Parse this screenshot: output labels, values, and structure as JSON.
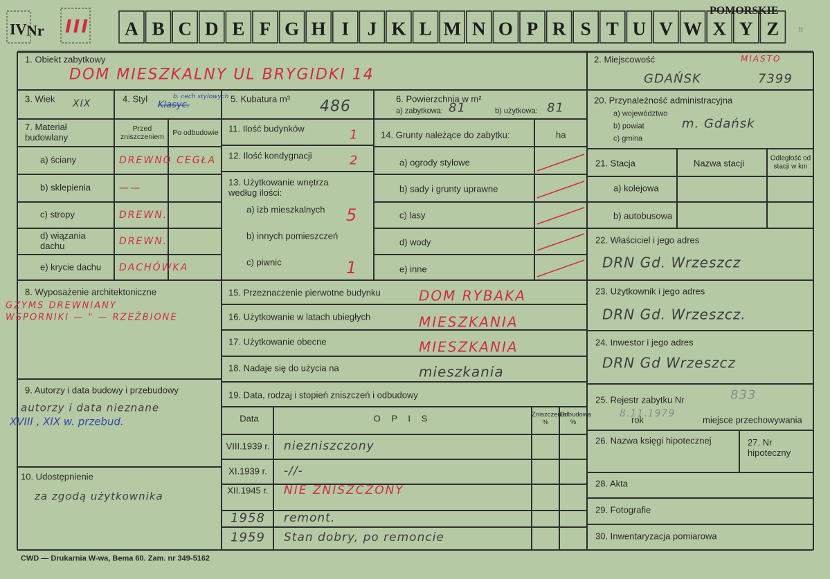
{
  "header": {
    "prefix": "IV",
    "number_label": "Nr",
    "number": "III",
    "region": "POMORSKIE",
    "suffix": "II",
    "letters": [
      "A",
      "B",
      "C",
      "D",
      "E",
      "F",
      "G",
      "H",
      "I",
      "J",
      "K",
      "L",
      "M",
      "N",
      "O",
      "P",
      "R",
      "S",
      "T",
      "U",
      "V",
      "W",
      "X",
      "Y",
      "Z"
    ]
  },
  "object": {
    "label": "1. Obiekt zabytkowy",
    "value": "DOM MIESZKALNY   UL BRYGIDKI 14"
  },
  "locality": {
    "label": "2. Miejscowość",
    "note": "MIASTO",
    "value": "GDAŃSK",
    "code": "7399"
  },
  "age": {
    "label": "3. Wiek",
    "value": "XIX"
  },
  "style": {
    "label": "4. Styl",
    "note": "b. cech stylowych",
    "value": "Klasyc."
  },
  "volume": {
    "label": "5. Kubatura m³",
    "value": "486"
  },
  "area": {
    "label": "6. Powierzchnia w m²",
    "historic_label": "a) zabytkowa:",
    "historic": "81",
    "usable_label": "b) użytkowa:",
    "usable": "81"
  },
  "administration": {
    "label": "20. Przynależność administracyjna",
    "voivodeship": "a) województwo",
    "district": "b) powiat",
    "district_value": "m. Gdańsk",
    "commune": "c) gmina"
  },
  "materials": {
    "label": "7. Materiał budowlany",
    "before": "Przed zniszczeniem",
    "after": "Po odbudowie",
    "rows": [
      [
        "a) ściany",
        "DREWNO CEGŁA"
      ],
      [
        "b) sklepienia",
        "——"
      ],
      [
        "c) stropy",
        "DREWN."
      ],
      [
        "d) wiązania dachu",
        "DREWN."
      ],
      [
        "e) krycie dachu",
        "DACHÓWKA"
      ]
    ]
  },
  "buildings": {
    "label": "11. Ilość budynków",
    "value": "1"
  },
  "floors": {
    "label": "12. Ilość kondygnacji",
    "value": "2"
  },
  "interior": {
    "label": "13. Użytkowanie wnętrza według ilości:",
    "rows": [
      [
        "a) izb mieszkalnych",
        "5"
      ],
      [
        "b) innych pomieszczeń",
        ""
      ],
      [
        "c) piwnic",
        "1"
      ]
    ]
  },
  "land": {
    "label": "14. Grunty należące do zabytku:",
    "unit": "ha",
    "rows": [
      "a) ogrody stylowe",
      "b) sady i grunty uprawne",
      "c) lasy",
      "d) wody",
      "e) inne"
    ]
  },
  "station": {
    "label": "21. Stacja",
    "name": "Nazwa stacji",
    "distance": "Odległość od stacji w km",
    "rows": [
      "a) kolejowa",
      "b) autobusowa"
    ]
  },
  "owner": {
    "label": "22. Właściciel i jego adres",
    "value": "DRN Gd. Wrzeszcz"
  },
  "user": {
    "label": "23. Użytkownik i jego adres",
    "value": "DRN Gd. Wrzeszcz."
  },
  "investor": {
    "label": "24. Inwestor i jego adres",
    "value": "DRN Gd Wrzeszcz"
  },
  "register": {
    "label": "25. Rejestr zabytku Nr",
    "number": "833",
    "year_label": "rok",
    "year": "8.11.1979",
    "place_label": "miejsce przechowywania"
  },
  "mortgage_book": {
    "label": "26. Nazwa księgi hipotecznej"
  },
  "mortgage_no": {
    "label": "27. Nr hipoteczny"
  },
  "files": {
    "label": "28. Akta"
  },
  "photos": {
    "label": "29. Fotografie"
  },
  "survey": {
    "label": "30. Inwentaryzacja pomiarowa"
  },
  "equipment": {
    "label": "8. Wyposażenie architektoniczne",
    "lines": [
      "GZYMS DREWNIANY",
      "WSPORNIKI — \" — RZEŹBIONE"
    ]
  },
  "authors": {
    "label": "9. Autorzy i data budowy i przebudowy",
    "lines": [
      "autorzy i data nieznane",
      "XVIII , XIX w. przebud."
    ]
  },
  "access": {
    "label": "10. Udostępnienie",
    "value": "za zgodą użytkownika"
  },
  "purpose_original": {
    "label": "15. Przeznaczenie pierwotne budynku",
    "value": "DOM RYBAKA"
  },
  "use_past": {
    "label": "16. Użytkowanie w latach ubiegłych",
    "value": "MIESZKANIA"
  },
  "use_current": {
    "label": "17. Użytkowanie obecne",
    "value": "MIESZKANIA"
  },
  "suitable": {
    "label": "18. Nadaje się do użycia na",
    "value": "mieszkania"
  },
  "damage": {
    "label": "19. Data, rodzaj i stopień zniszczeń i odbudowy",
    "columns": [
      "Data",
      "O P I S",
      "Zniszczenia %",
      "Odbudowa %"
    ],
    "rows": [
      [
        "VIII.1939 r.",
        "niezniszczony"
      ],
      [
        "XI.1939 r.",
        "-//-"
      ],
      [
        "XII.1945 r.",
        "NIE ZNISZCZONY"
      ],
      [
        "1958",
        "remont."
      ],
      [
        "1959",
        "Stan dobry, po remoncie"
      ]
    ]
  },
  "footer": {
    "printer": "CWD — Drukarnia W-wa, Bema 60. Zam. nr 349-5162"
  }
}
